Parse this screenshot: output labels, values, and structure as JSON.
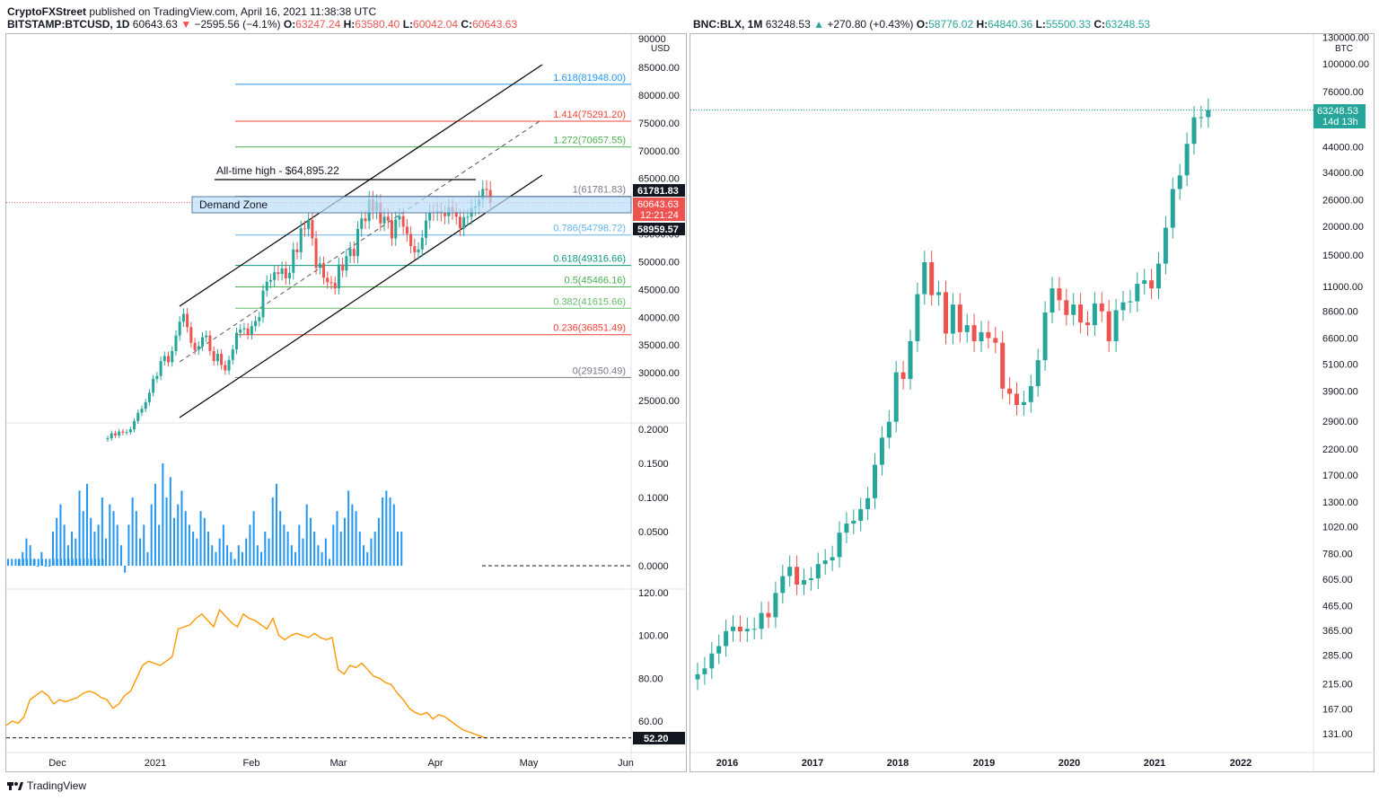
{
  "header": {
    "author": "CryptoFXStreet",
    "published": "published on TradingView.com, April 16, 2021 11:38:38 UTC"
  },
  "left_chart": {
    "symbol": "BITSTAMP:BTCUSD, 1D",
    "last": "60643.63",
    "change": "−2595.56 (−4.1%)",
    "ohlc": {
      "o": "63247.24",
      "h": "63580.40",
      "l": "60042.04",
      "c": "60643.63"
    },
    "currency": "USD",
    "ath_label": "All-time high - $64,895.22",
    "demand_zone_label": "Demand Zone",
    "price_axis": [
      "85000.00",
      "80000.00",
      "75000.00",
      "70000.00",
      "65000.00",
      "55000.00",
      "50000.00",
      "45000.00",
      "40000.00",
      "35000.00",
      "30000.00",
      "25000.00"
    ],
    "price_axis_top": "90000",
    "price_tags": [
      {
        "text": "61781.83",
        "kind": "black"
      },
      {
        "text": "60643.63",
        "kind": "red"
      },
      {
        "text": "12:21:24",
        "kind": "red"
      },
      {
        "text": "58959.57",
        "kind": "black"
      }
    ],
    "fib_levels": [
      {
        "label": "1.618(81948.00)",
        "value": 81948.0,
        "color": "#2196f3"
      },
      {
        "label": "1.414(75291.20)",
        "value": 75291.2,
        "color": "#f44336"
      },
      {
        "label": "1.272(70657.55)",
        "value": 70657.55,
        "color": "#4caf50"
      },
      {
        "label": "1(61781.83)",
        "value": 61781.83,
        "color": "#787b86"
      },
      {
        "label": "0.786(54798.72)",
        "value": 54798.72,
        "color": "#64b5f6"
      },
      {
        "label": "0.618(49316.66)",
        "value": 49316.66,
        "color": "#089981"
      },
      {
        "label": "0.5(45466.16)",
        "value": 45466.16,
        "color": "#4caf50"
      },
      {
        "label": "0.382(41615.66)",
        "value": 41615.66,
        "color": "#66bb6a"
      },
      {
        "label": "0.236(36851.49)",
        "value": 36851.49,
        "color": "#f44336"
      },
      {
        "label": "0(29150.49)",
        "value": 29150.49,
        "color": "#787b86"
      }
    ],
    "x_axis": [
      "Dec",
      "2021",
      "Feb",
      "Mar",
      "Apr",
      "May",
      "Jun"
    ],
    "indicator1_axis": [
      "0.2000",
      "0.1500",
      "0.1000",
      "0.0500",
      "0.0000"
    ],
    "indicator2_axis": [
      "120.00",
      "100.00",
      "80.00",
      "60.00"
    ],
    "indicator2_tag": "52.20"
  },
  "right_chart": {
    "symbol": "BNC:BLX, 1M",
    "last": "63248.53",
    "change": "+270.80 (+0.43%)",
    "ohlc": {
      "o": "58776.02",
      "h": "64840.36",
      "l": "55500.33",
      "c": "63248.53"
    },
    "currency": "BTC",
    "price_axis": [
      "130000.00",
      "100000.00",
      "76000.00",
      "44000.00",
      "34000.00",
      "26000.00",
      "20000.00",
      "15000.00",
      "11000.00",
      "8600.00",
      "6600.00",
      "5100.00",
      "3900.00",
      "2900.00",
      "2200.00",
      "1700.00",
      "1300.00",
      "1020.00",
      "780.00",
      "605.00",
      "465.00",
      "365.00",
      "285.00",
      "215.00",
      "167.00",
      "131.00"
    ],
    "price_tag": "63248.53",
    "countdown": "14d 13h",
    "x_axis": [
      "2016",
      "2017",
      "2018",
      "2019",
      "2020",
      "2021",
      "2022"
    ]
  },
  "footer": {
    "brand": "TradingView"
  },
  "chart_data": [
    {
      "type": "candlestick",
      "title": "BITSTAMP:BTCUSD, 1D",
      "ylim": [
        20000,
        90000
      ],
      "series": [
        {
          "name": "BTCUSD",
          "close": [
            18200,
            19100,
            18700,
            19400,
            19200,
            19300,
            19800,
            21300,
            22800,
            23500,
            24700,
            26400,
            28900,
            29400,
            32100,
            33000,
            31900,
            33900,
            36700,
            39200,
            40600,
            38200,
            35400,
            34100,
            34800,
            36400,
            36700,
            33900,
            32100,
            33400,
            31400,
            30400,
            32300,
            34200,
            37200,
            37800,
            38000,
            36900,
            38400,
            39300,
            40000,
            44800,
            46400,
            46700,
            48100,
            47800,
            48800,
            47000,
            48000,
            52200,
            51700,
            56000,
            55900,
            57500,
            54200,
            48900,
            49700,
            47100,
            46300,
            46200,
            45200,
            49500,
            48400,
            51000,
            52300,
            51000,
            55900,
            57800,
            57300,
            61200,
            59100,
            60600,
            56900,
            58100,
            57400,
            54200,
            57600,
            58200,
            56300,
            55000,
            52800,
            51700,
            52200,
            54300,
            57400,
            58900,
            58800,
            59100,
            58700,
            58200,
            59800,
            59000,
            58100,
            56000,
            58000,
            58100,
            59700,
            60000,
            61200,
            63100,
            62900,
            60643
          ]
        }
      ]
    },
    {
      "type": "candlestick",
      "title": "BNC:BLX, 1M",
      "scale": "log",
      "ylim": [
        120,
        130000
      ],
      "series": [
        {
          "name": "BLX",
          "close": [
            236,
            250,
            290,
            312,
            362,
            378,
            361,
            370,
            370,
            433,
            415,
            528,
            624,
            684,
            574,
            600,
            610,
            703,
            729,
            753,
            960,
            1050,
            1080,
            1211,
            1350,
            1880,
            2460,
            2880,
            4700,
            4400,
            6400,
            10200,
            14000,
            10100,
            10400,
            6900,
            9200,
            7000,
            7500,
            6400,
            7000,
            6600,
            6300,
            4000,
            3800,
            3400,
            3500,
            4100,
            5300,
            8500,
            10800,
            9600,
            8300,
            9200,
            7700,
            7500,
            9300,
            8600,
            6400,
            8700,
            9400,
            9500,
            11300,
            11700,
            10800,
            13800,
            19700,
            28900,
            33100,
            45200,
            58800,
            58900,
            63248
          ]
        }
      ]
    }
  ]
}
